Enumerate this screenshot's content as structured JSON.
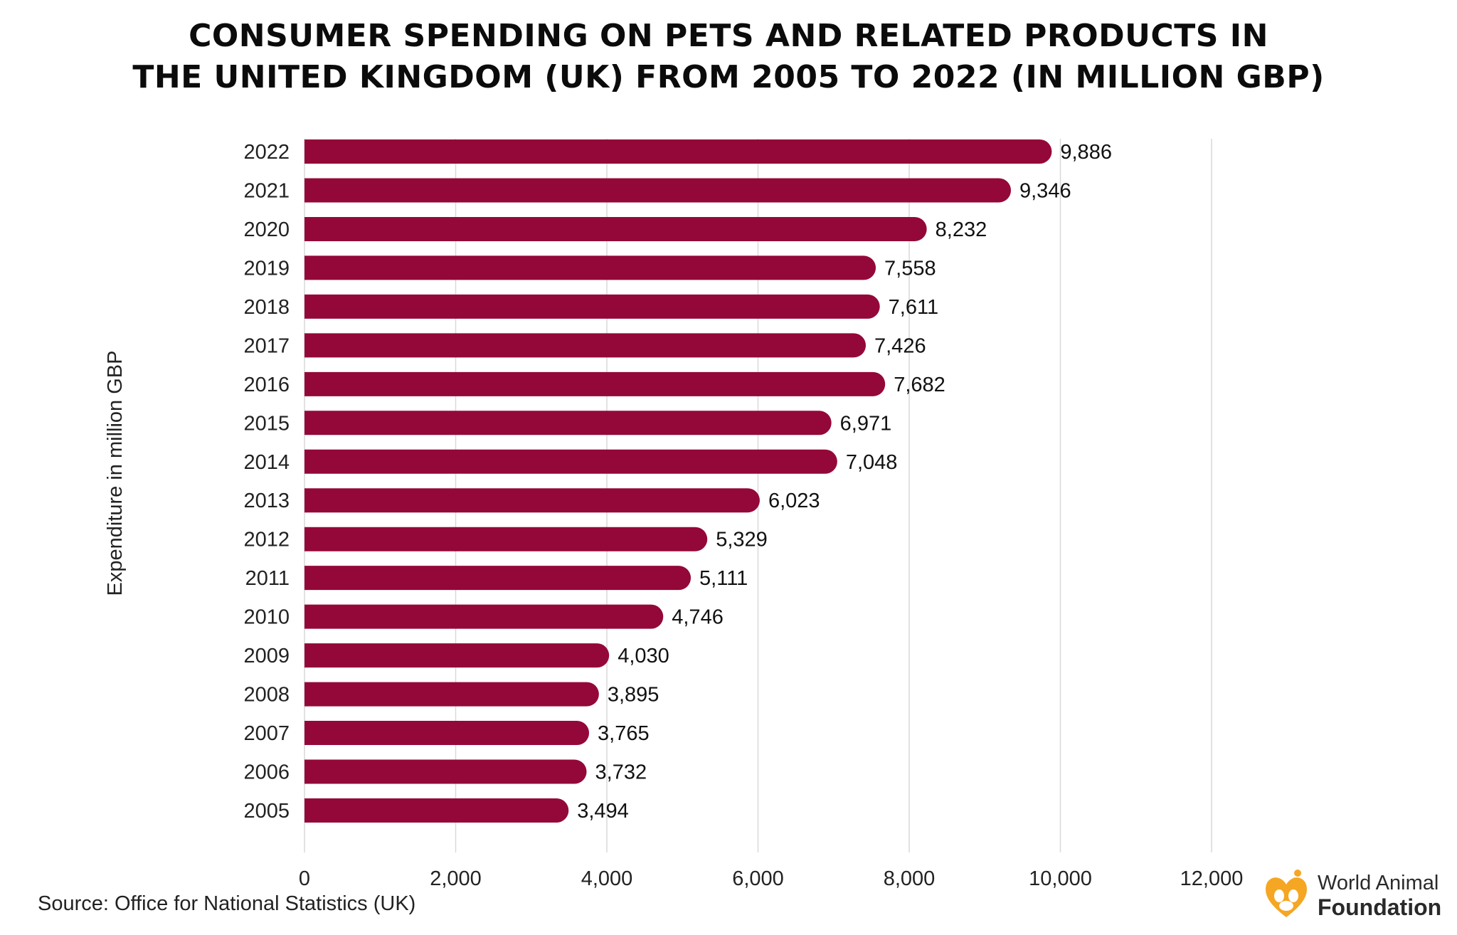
{
  "chart_data": {
    "type": "bar",
    "orientation": "horizontal",
    "title": {
      "line1": "CONSUMER SPENDING ON PETS AND RELATED PRODUCTS IN",
      "line2": "THE UNITED KINGDOM (UK) FROM 2005 TO 2022 (IN MILLION GBP)"
    },
    "ylabel": "Expenditure in million GBP",
    "xlabel": "",
    "categories": [
      "2022",
      "2021",
      "2020",
      "2019",
      "2018",
      "2017",
      "2016",
      "2015",
      "2014",
      "2013",
      "2012",
      "2011",
      "2010",
      "2009",
      "2008",
      "2007",
      "2006",
      "2005"
    ],
    "values": [
      9886,
      9346,
      8232,
      7558,
      7611,
      7426,
      7682,
      6971,
      7048,
      6023,
      5329,
      5111,
      4746,
      4030,
      3895,
      3765,
      3732,
      3494
    ],
    "value_labels": [
      "9,886",
      "9,346",
      "8,232",
      "7,558",
      "7,611",
      "7,426",
      "7,682",
      "6,971",
      "7,048",
      "6,023",
      "5,329",
      "5,111",
      "4,746",
      "4,030",
      "3,895",
      "3,765",
      "3,732",
      "3,494"
    ],
    "xlim": [
      0,
      12000
    ],
    "xticks": [
      0,
      2000,
      4000,
      6000,
      8000,
      10000,
      12000
    ],
    "xtick_labels": [
      "0",
      "2,000",
      "4,000",
      "6,000",
      "8,000",
      "10,000",
      "12,000"
    ],
    "grid": "vertical",
    "bar_color": "#940839",
    "grid_color": "#d9d9d9"
  },
  "source": "Source: Office for National Statistics (UK)",
  "brand": {
    "line1": "World Animal",
    "line2": "Foundation",
    "logo_icon": "paw-heart-icon",
    "logo_color": "#f5a623"
  }
}
